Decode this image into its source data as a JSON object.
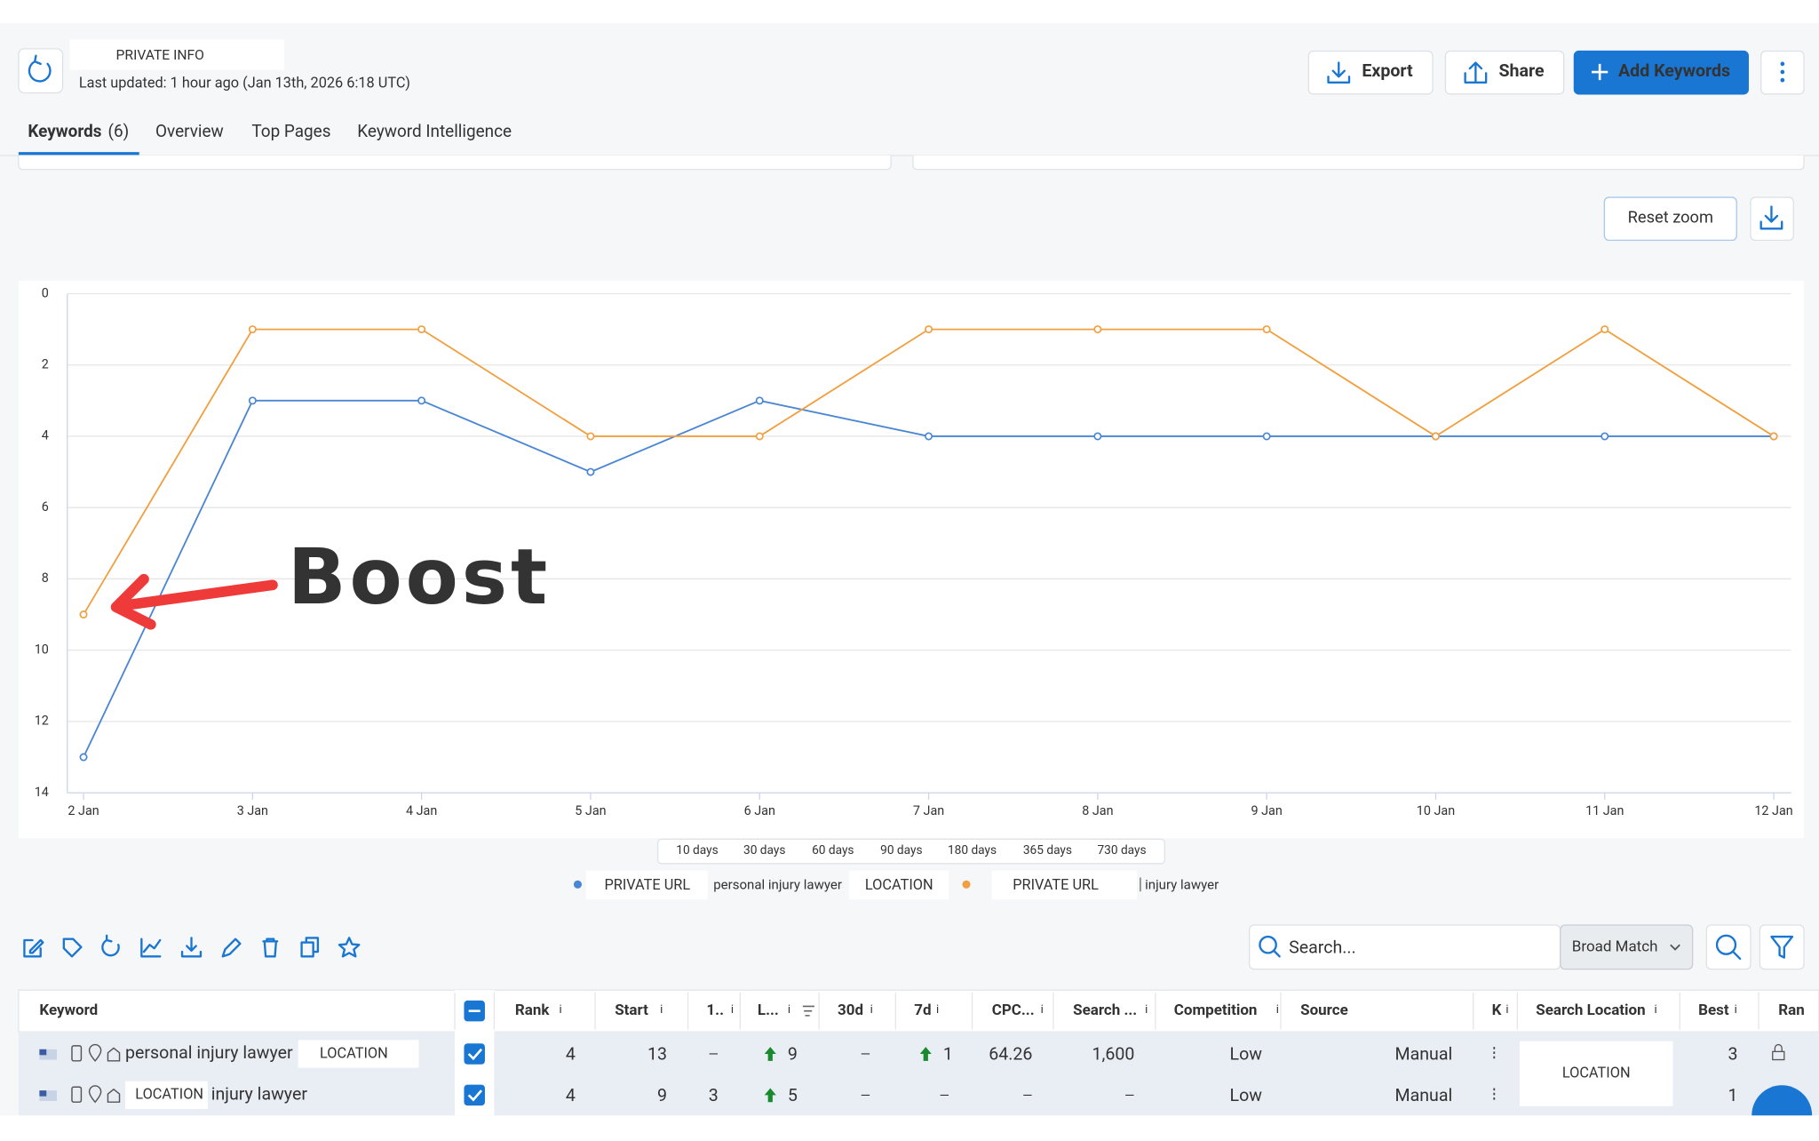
{
  "header": {
    "private_info": "PRIVATE INFO",
    "last_updated": "Last updated: 1 hour ago (Jan 13th, 2026 6:18 UTC)",
    "buttons": [
      "Export",
      "Share",
      "Add Keywords"
    ]
  },
  "tabs": [
    "Keywords",
    "Overview",
    "Top Pages",
    "Keyword Intelligence"
  ],
  "tab_count": "(6)",
  "reset_zoom": "Reset zoom",
  "chart_data": {
    "type": "line",
    "categories": [
      "2 Jan",
      "3 Jan",
      "4 Jan",
      "5 Jan",
      "6 Jan",
      "7 Jan",
      "8 Jan",
      "9 Jan",
      "10 Jan",
      "11 Jan",
      "12 Jan"
    ],
    "series": [
      {
        "name": "personal injury lawyer",
        "color": "#4a86d4",
        "values": [
          13,
          3,
          3,
          5,
          3,
          4,
          4,
          4,
          4,
          4,
          4
        ]
      },
      {
        "name": "injury lawyer",
        "color": "#f0a040",
        "values": [
          9,
          1,
          1,
          4,
          4,
          1,
          1,
          1,
          4,
          1,
          4
        ]
      }
    ],
    "ylim": [
      0,
      14
    ],
    "y_inverted": true,
    "yticks": [
      0,
      2,
      4,
      6,
      8,
      10,
      12,
      14
    ],
    "grid": true,
    "annotation": "Boost"
  },
  "ranges": [
    "10 days",
    "30 days",
    "60 days",
    "90 days",
    "180 days",
    "365 days",
    "730 days"
  ],
  "legend": [
    {
      "url": "PRIVATE URL",
      "location": "LOCATION"
    },
    {
      "url": "PRIVATE URL"
    }
  ],
  "search": {
    "placeholder": "Search...",
    "match": "Broad Match"
  },
  "table": {
    "columns": [
      "Keyword",
      "Rank",
      "Start",
      "1..",
      "L...",
      "30d",
      "7d",
      "CPC...",
      "Search ...",
      "Competition",
      "Source",
      "K",
      "Search Location",
      "Best",
      "Ran"
    ],
    "search_location": "LOCATION",
    "rows": [
      {
        "keyword": "personal injury lawyer",
        "location": "LOCATION",
        "cells": [
          4,
          13,
          "—",
          {
            "value": 9,
            "trend": "up"
          },
          "—",
          {
            "value": 1,
            "trend": "up"
          },
          64.26,
          "1,600",
          "Low",
          "Manual",
          3
        ]
      },
      {
        "keyword": "injury lawyer",
        "location": "LOCATION",
        "cells": [
          4,
          9,
          3,
          {
            "value": 5,
            "trend": "up"
          },
          "—",
          "—",
          "—",
          "—",
          "Low",
          "Manual",
          1
        ]
      }
    ]
  }
}
